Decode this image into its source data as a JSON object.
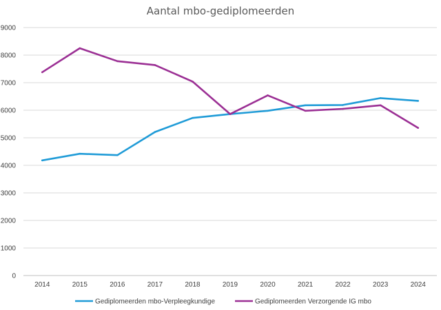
{
  "chart_data": {
    "type": "line",
    "title": "Aantal mbo-gediplomeerden",
    "xlabel": "",
    "ylabel": "",
    "x": [
      "2014",
      "2015",
      "2016",
      "2017",
      "2018",
      "2019",
      "2020",
      "2021",
      "2022",
      "2023",
      "2024"
    ],
    "ylim": [
      0,
      9000
    ],
    "yticks": [
      0,
      1000,
      2000,
      3000,
      4000,
      5000,
      6000,
      7000,
      8000,
      9000
    ],
    "grid": true,
    "legend_position": "bottom",
    "series": [
      {
        "name": "Gediplomeerden mbo-Verpleegkundige",
        "color": "#1f9bd7",
        "values": [
          4180,
          4420,
          4370,
          5210,
          5720,
          5860,
          5980,
          6180,
          6190,
          6440,
          6340
        ]
      },
      {
        "name": "Gediplomeerden Verzorgende IG mbo",
        "color": "#9b2f94",
        "values": [
          7380,
          8250,
          7780,
          7640,
          7040,
          5860,
          6540,
          5980,
          6050,
          6180,
          5360
        ]
      }
    ]
  }
}
